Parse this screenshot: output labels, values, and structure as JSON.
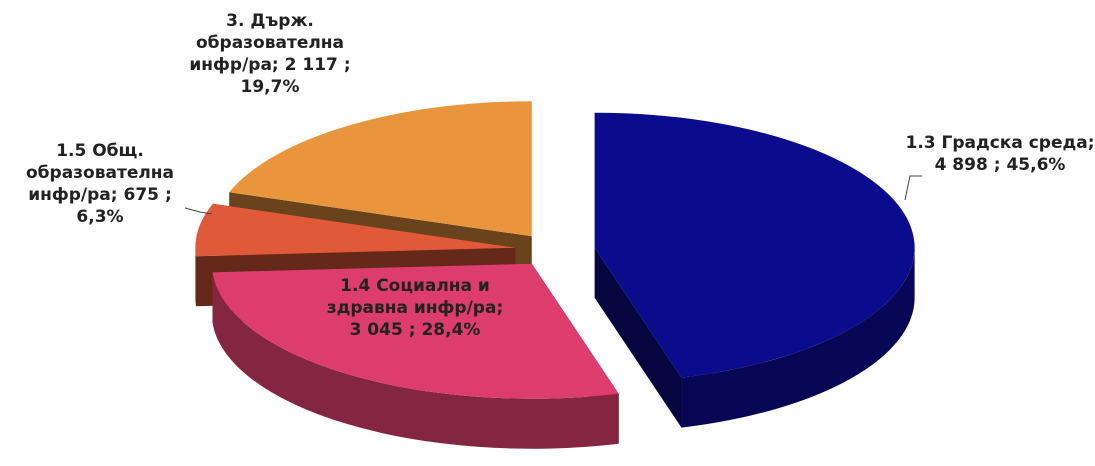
{
  "chart_data": {
    "type": "pie3d",
    "categories": [
      "1.3 Градска среда",
      "1.4 Социална и здравна инфр/ра",
      "1.5 Общ. образователна инфр/ра",
      "3. Държ. образователна инфр/ра"
    ],
    "values": [
      4898,
      3045,
      675,
      2117
    ],
    "value_labels": [
      "4 898",
      "3 045",
      "675",
      "2 117"
    ],
    "percentages": [
      45.6,
      28.4,
      6.3,
      19.7
    ],
    "percentage_labels": [
      "45,6%",
      "28,4%",
      "6,3%",
      "19,7%"
    ],
    "separator": ";",
    "colors": [
      "#0b0b8e",
      "#dc3d6c",
      "#e05a3a",
      "#e8953c"
    ]
  }
}
